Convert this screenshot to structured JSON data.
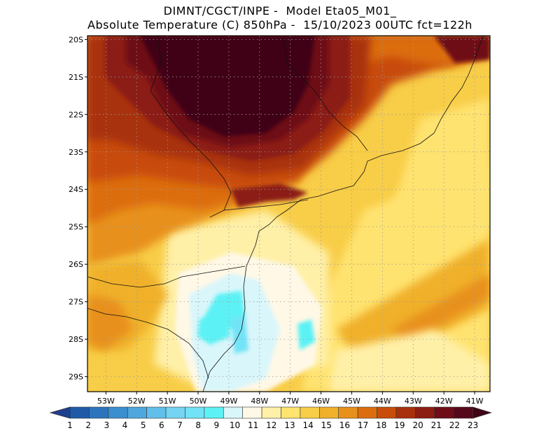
{
  "header": {
    "line1": "DIMNT/CGCT/INPE -  Model Eta05_M01_",
    "line2": "Absolute Temperature (C) 850hPa -  15/10/2023 00UTC fct=122h"
  },
  "map": {
    "lon_range": [
      -53.6,
      -40.5
    ],
    "lat_range": [
      -29.4,
      -19.9
    ],
    "lat_ticks": [
      "20S",
      "21S",
      "22S",
      "23S",
      "24S",
      "25S",
      "26S",
      "27S",
      "28S",
      "29S"
    ],
    "lon_ticks": [
      "53W",
      "52W",
      "51W",
      "50W",
      "49W",
      "48W",
      "47W",
      "46W",
      "45W",
      "44W",
      "43W",
      "42W",
      "41W"
    ],
    "field": "temperature_850hPa",
    "units": "C"
  },
  "colorbar": {
    "labels": [
      "1",
      "2",
      "3",
      "4",
      "5",
      "6",
      "7",
      "8",
      "9",
      "10",
      "11",
      "12",
      "13",
      "14",
      "15",
      "16",
      "17",
      "18",
      "19",
      "20",
      "21",
      "22",
      "23"
    ],
    "colors": [
      "#1f3f8f",
      "#1e5aa8",
      "#2c75bd",
      "#3b8fcf",
      "#4fa7dd",
      "#62bfe9",
      "#74d4f2",
      "#72e3f6",
      "#5cf2f5",
      "#d9f6fb",
      "#fff8e6",
      "#fff0a8",
      "#ffe36f",
      "#f8cd47",
      "#f0b02a",
      "#e8901c",
      "#dc6d0f",
      "#c84c0a",
      "#a8300c",
      "#8b1d12",
      "#6e0d17",
      "#56081b",
      "#3f0516"
    ]
  }
}
